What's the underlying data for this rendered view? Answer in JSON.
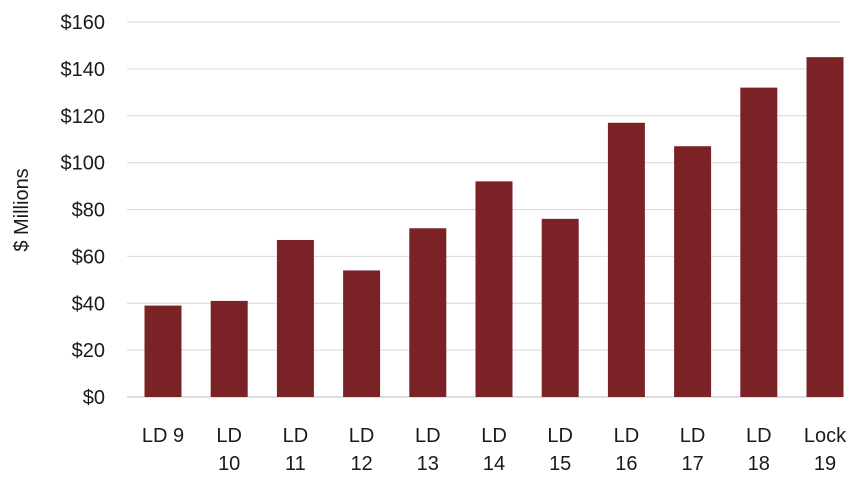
{
  "chart_data": {
    "type": "bar",
    "title": "",
    "xlabel": "",
    "ylabel": "$ Millions",
    "ylim": [
      0,
      160
    ],
    "yticks": [
      0,
      20,
      40,
      60,
      80,
      100,
      120,
      140,
      160
    ],
    "ytick_labels": [
      "$0",
      "$20",
      "$40",
      "$60",
      "$80",
      "$100",
      "$120",
      "$140",
      "$160"
    ],
    "categories": [
      [
        "LD 9"
      ],
      [
        "LD",
        "10"
      ],
      [
        "LD",
        "11"
      ],
      [
        "LD",
        "12"
      ],
      [
        "LD",
        "13"
      ],
      [
        "LD",
        "14"
      ],
      [
        "LD",
        "15"
      ],
      [
        "LD",
        "16"
      ],
      [
        "LD",
        "17"
      ],
      [
        "LD",
        "18"
      ],
      [
        "Lock",
        "19"
      ]
    ],
    "values": [
      39,
      41,
      67,
      54,
      72,
      92,
      76,
      117,
      107,
      132,
      145
    ],
    "grid": true,
    "legend": "none",
    "bar_color": "#7b2226"
  }
}
